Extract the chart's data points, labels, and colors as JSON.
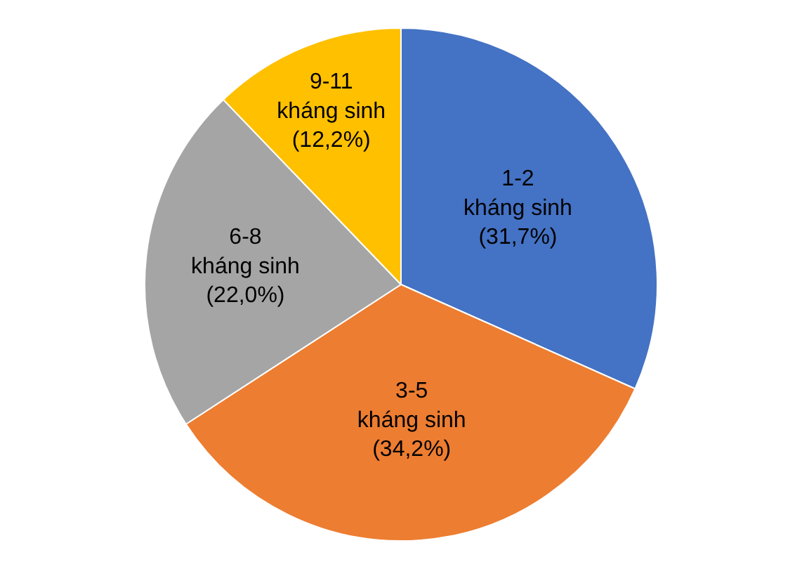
{
  "chart_data": {
    "type": "pie",
    "categories": [
      "1-2\nkháng sinh",
      "3-5\nkháng sinh",
      "6-8\nkháng sinh",
      "9-11\nkháng sinh"
    ],
    "values": [
      31.7,
      34.2,
      22.0,
      12.2
    ],
    "value_labels": [
      "(31,7%)",
      "(34,2%)",
      "(22,0%)",
      "(12,2%)"
    ],
    "colors": [
      "#4472c4",
      "#ed7d31",
      "#a5a5a5",
      "#ffc000"
    ],
    "legend": false
  }
}
